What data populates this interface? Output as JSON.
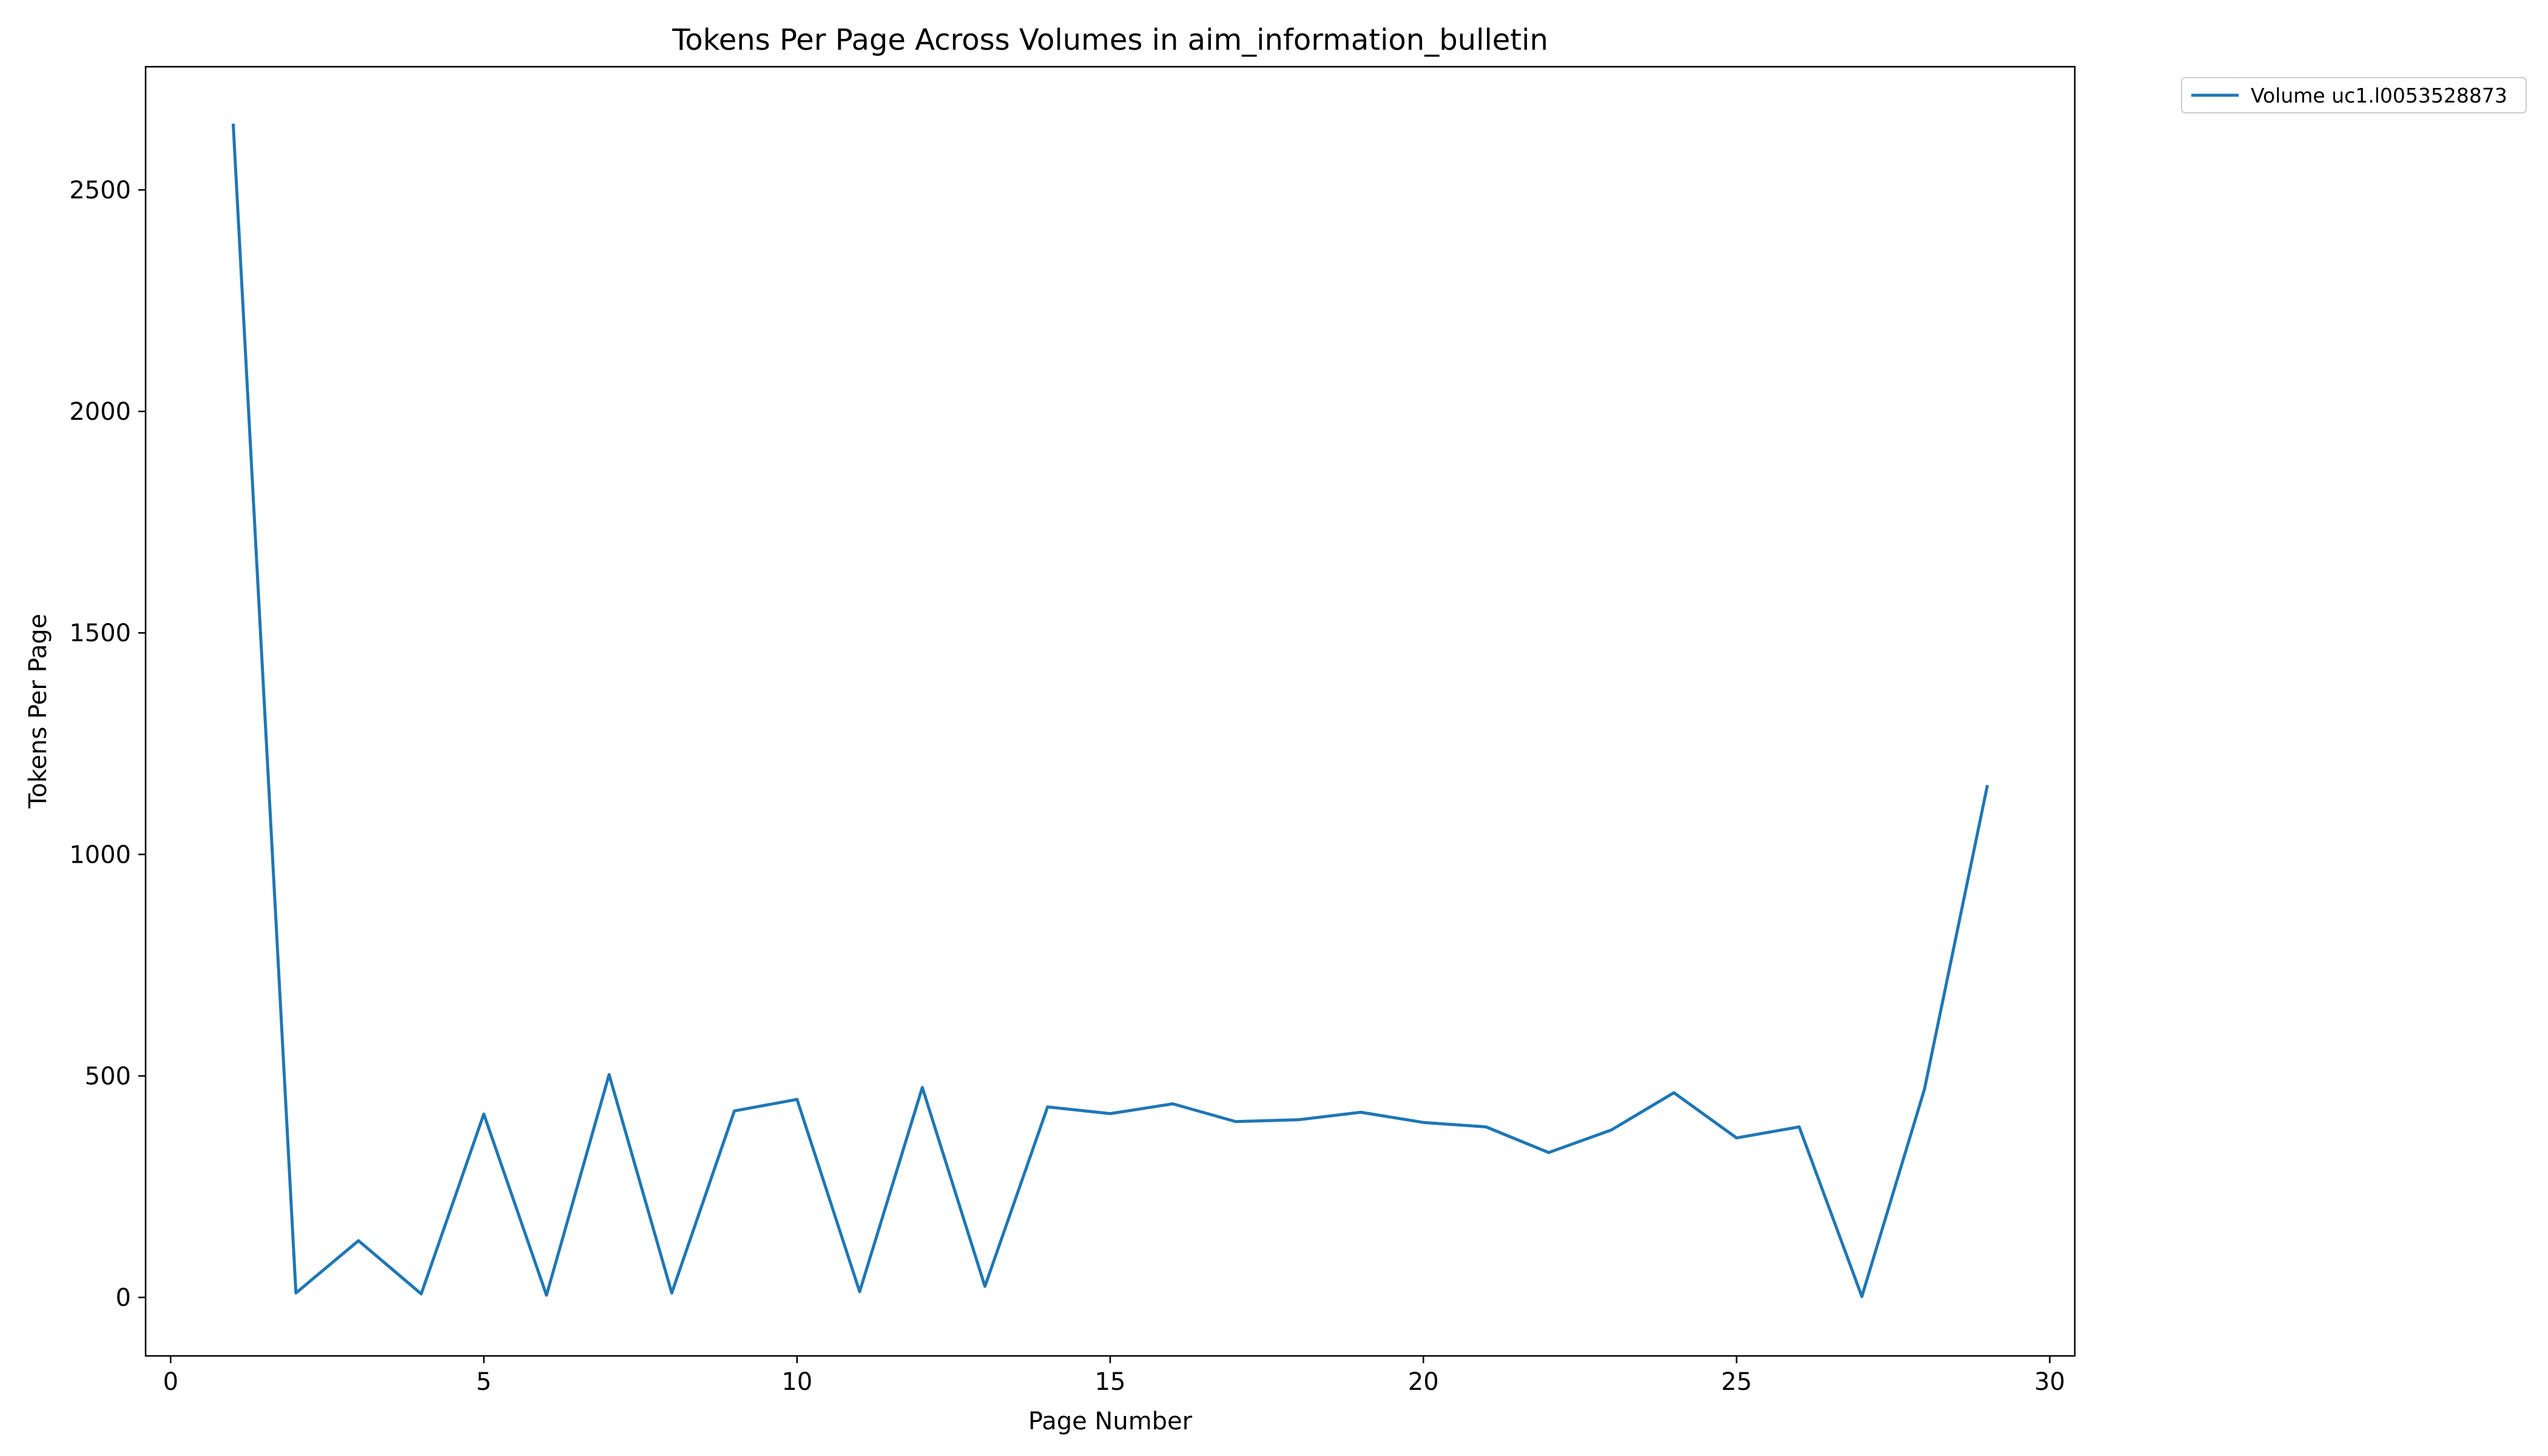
{
  "chart_data": {
    "type": "line",
    "title": "Tokens Per Page Across Volumes in aim_information_bulletin",
    "xlabel": "Page Number",
    "ylabel": "Tokens Per Page",
    "xlim": [
      -0.4,
      30.4
    ],
    "ylim": [
      -132,
      2778
    ],
    "xticks": [
      0,
      5,
      10,
      15,
      20,
      25,
      30
    ],
    "yticks": [
      0,
      500,
      1000,
      1500,
      2000,
      2500
    ],
    "grid": false,
    "legend": "outside top-right",
    "series": [
      {
        "name": "Volume uc1.l0053528873",
        "color": "#1f77b4",
        "x": [
          1,
          2,
          3,
          4,
          5,
          6,
          7,
          8,
          9,
          10,
          11,
          12,
          13,
          14,
          15,
          16,
          17,
          18,
          19,
          20,
          21,
          22,
          23,
          24,
          25,
          26,
          27,
          28,
          29
        ],
        "y": [
          2646,
          10,
          128,
          8,
          414,
          5,
          503,
          10,
          421,
          447,
          13,
          474,
          25,
          430,
          415,
          437,
          397,
          401,
          418,
          395,
          385,
          327,
          378,
          462,
          360,
          385,
          2,
          470,
          1153
        ]
      }
    ]
  }
}
